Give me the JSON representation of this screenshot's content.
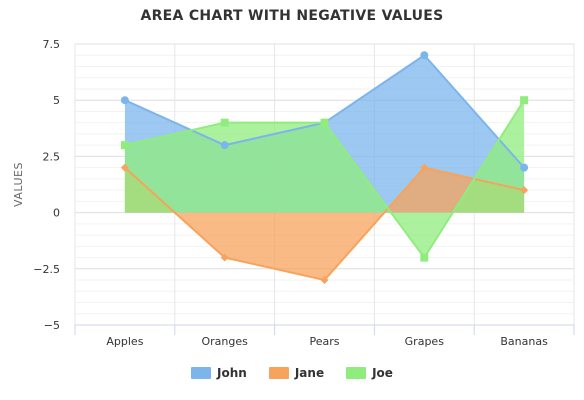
{
  "chart_data": {
    "type": "area",
    "title": "AREA CHART WITH NEGATIVE VALUES",
    "xlabel": "",
    "ylabel": "VALUES",
    "categories": [
      "Apples",
      "Oranges",
      "Pears",
      "Grapes",
      "Bananas"
    ],
    "ylim": [
      -5,
      7.5
    ],
    "y_ticks": [
      7.5,
      5,
      2.5,
      0,
      -2.5,
      -5
    ],
    "y_tick_labels": [
      "7.5",
      "5",
      "2.5",
      "0",
      "−2.5",
      "−5"
    ],
    "grid": true,
    "legend_position": "bottom",
    "series": [
      {
        "name": "John",
        "values": [
          5,
          3,
          4,
          7,
          2
        ],
        "color": "#7cb5ec",
        "marker": "circle"
      },
      {
        "name": "Jane",
        "values": [
          2,
          -2,
          -3,
          2,
          1
        ],
        "color": "#f7a35c",
        "marker": "diamond"
      },
      {
        "name": "Joe",
        "values": [
          3,
          4,
          4,
          -2,
          5
        ],
        "color": "#90ed7d",
        "marker": "square"
      }
    ]
  }
}
